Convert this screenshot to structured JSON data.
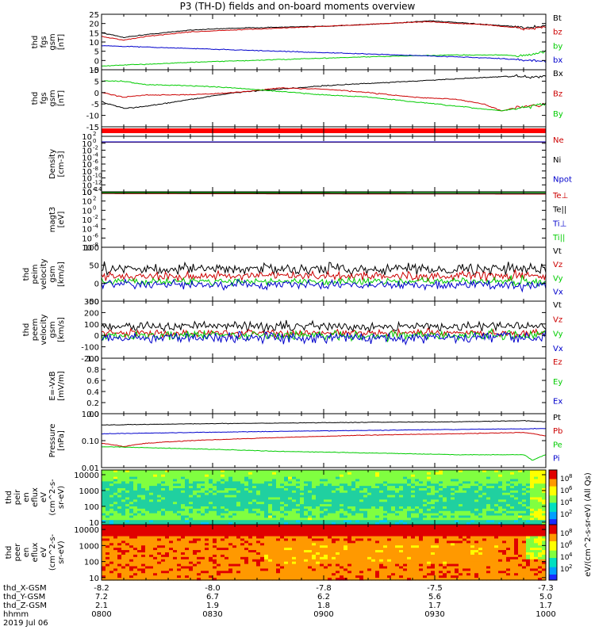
{
  "title": "P3 (TH-D) fields and on-board moments overview",
  "chart_data": [
    {
      "type": "line",
      "panel": "fgs",
      "ylabel": [
        "thd",
        "fgs",
        "gsm",
        "[nT]"
      ],
      "ylim": [
        -5,
        25
      ],
      "yticks": [
        -5,
        0,
        5,
        10,
        15,
        20,
        25
      ],
      "series": [
        {
          "name": "Bt",
          "color": "#000000",
          "x": [
            0,
            0.05,
            0.1,
            0.2,
            0.3,
            0.4,
            0.5,
            0.6,
            0.68,
            0.74,
            0.8,
            0.86,
            0.92,
            0.96,
            1.0
          ],
          "values": [
            15,
            12.5,
            14,
            16.5,
            17.5,
            18,
            18.5,
            19.5,
            20.5,
            21.5,
            20.5,
            19.5,
            18.5,
            17.5,
            19
          ]
        },
        {
          "name": "bz",
          "color": "#cc0000",
          "x": [
            0,
            0.05,
            0.1,
            0.2,
            0.3,
            0.4,
            0.5,
            0.6,
            0.68,
            0.74,
            0.8,
            0.86,
            0.92,
            0.96,
            1.0
          ],
          "values": [
            13,
            11,
            13,
            15.5,
            16.5,
            17.5,
            18.5,
            19.5,
            20.5,
            21,
            20,
            19.5,
            18,
            17,
            18
          ]
        },
        {
          "name": "by",
          "color": "#00cc00",
          "x": [
            0,
            0.2,
            0.4,
            0.6,
            0.8,
            0.9,
            0.95,
            1.0
          ],
          "values": [
            -3,
            -1,
            0.5,
            2,
            3,
            3,
            2.5,
            5
          ]
        },
        {
          "name": "bx",
          "color": "#0000cc",
          "x": [
            0,
            0.2,
            0.4,
            0.6,
            0.8,
            0.9,
            1.0
          ],
          "values": [
            8,
            6.5,
            5,
            3.5,
            2,
            1,
            -0.5
          ]
        }
      ]
    },
    {
      "type": "line",
      "panel": "fgs-dsl",
      "ylabel": [
        "thd",
        "fgs",
        "gsm",
        "[nT]"
      ],
      "ylim": [
        -15,
        10
      ],
      "yticks": [
        -15,
        -10,
        -5,
        0,
        5,
        10
      ],
      "series": [
        {
          "name": "Bx",
          "color": "#000000",
          "x": [
            0,
            0.05,
            0.1,
            0.2,
            0.3,
            0.4,
            0.5,
            0.6,
            0.7,
            0.8,
            0.9,
            1.0
          ],
          "values": [
            -4,
            -7,
            -6,
            -3,
            0,
            1.5,
            3,
            4,
            5,
            6,
            7,
            7
          ]
        },
        {
          "name": "Bz",
          "color": "#cc0000",
          "x": [
            0,
            0.05,
            0.1,
            0.2,
            0.3,
            0.4,
            0.5,
            0.6,
            0.7,
            0.8,
            0.86,
            0.9,
            0.95,
            1.0
          ],
          "values": [
            0,
            -2,
            -1,
            -1,
            0,
            2,
            1.5,
            0,
            -2,
            -3,
            -5,
            -8,
            -6,
            -5
          ]
        },
        {
          "name": "By",
          "color": "#00cc00",
          "x": [
            0,
            0.05,
            0.1,
            0.2,
            0.3,
            0.4,
            0.5,
            0.6,
            0.7,
            0.8,
            0.9,
            1.0
          ],
          "values": [
            5,
            5,
            3.5,
            3,
            2,
            0.5,
            -1,
            -2,
            -4,
            -6,
            -8,
            -5
          ]
        }
      ]
    },
    {
      "type": "line",
      "panel": "flags",
      "series": [
        {
          "name": "",
          "color": "#ff0000"
        }
      ]
    },
    {
      "type": "line",
      "panel": "density",
      "scale": "log",
      "ylabel": [
        "Density",
        "[cm-3]"
      ],
      "ylim": [
        -14,
        2
      ],
      "yticks": [
        2,
        0,
        -2,
        -4,
        -6,
        -8,
        -10,
        -12,
        -14
      ],
      "ytick_labels": [
        "10",
        "10",
        "10",
        "10",
        "10",
        "10",
        "10",
        "10",
        "10"
      ],
      "ytick_exps": [
        "2",
        "0",
        "-2",
        "-4",
        "-6",
        "-8",
        "-10",
        "-12",
        "-14"
      ],
      "series": [
        {
          "name": "Ne",
          "color": "#cc0000",
          "values": [
            0.3,
            0.3
          ]
        },
        {
          "name": "Ni",
          "color": "#000000",
          "values": [
            0.35,
            0.35
          ]
        },
        {
          "name": "Npot",
          "color": "#0000cc",
          "values": [
            0.4,
            0.4
          ]
        }
      ]
    },
    {
      "type": "line",
      "panel": "temperature",
      "scale": "log",
      "ylabel": [
        "magt3",
        "[eV]"
      ],
      "ylim": [
        -8,
        4
      ],
      "yticks": [
        4,
        2,
        0,
        -2,
        -4,
        -6,
        -8
      ],
      "ytick_labels": [
        "10",
        "10",
        "10",
        "10",
        "10",
        "10",
        "10"
      ],
      "ytick_exps": [
        "4",
        "2",
        "0",
        "-2",
        "-4",
        "-6",
        "-8"
      ],
      "series": [
        {
          "name": "Te⊥",
          "color": "#cc0000",
          "values": [
            3.6,
            3.5
          ]
        },
        {
          "name": "Te||",
          "color": "#000000",
          "values": [
            3.7,
            3.6
          ]
        },
        {
          "name": "Ti⊥",
          "color": "#0000cc",
          "values": [
            3.9,
            3.9
          ]
        },
        {
          "name": "Ti||",
          "color": "#00cc00",
          "values": [
            3.85,
            3.85
          ]
        }
      ]
    },
    {
      "type": "line",
      "panel": "peim-velocity",
      "ylabel": [
        "thd",
        "peim",
        "velocity",
        "gsm",
        "[km/s]"
      ],
      "ylim": [
        -50,
        100
      ],
      "yticks": [
        -50,
        0,
        50,
        100
      ],
      "series": [
        {
          "name": "Vt",
          "color": "#000000",
          "values": [
            40
          ]
        },
        {
          "name": "Vz",
          "color": "#cc0000",
          "values": [
            20
          ]
        },
        {
          "name": "Vy",
          "color": "#00cc00",
          "values": [
            5
          ]
        },
        {
          "name": "Vx",
          "color": "#0000cc",
          "values": [
            -5
          ]
        }
      ]
    },
    {
      "type": "line",
      "panel": "peem-velocity",
      "ylabel": [
        "thd",
        "peem",
        "velocity",
        "gsm",
        "[km/s]"
      ],
      "ylim": [
        -200,
        300
      ],
      "yticks": [
        -200,
        -100,
        0,
        100,
        200,
        300
      ],
      "series": [
        {
          "name": "Vt",
          "color": "#000000",
          "values": [
            80
          ]
        },
        {
          "name": "Vz",
          "color": "#cc0000",
          "values": [
            20
          ]
        },
        {
          "name": "Vy",
          "color": "#00cc00",
          "values": [
            0
          ]
        },
        {
          "name": "Vx",
          "color": "#0000cc",
          "values": [
            -20
          ]
        }
      ]
    },
    {
      "type": "line",
      "panel": "efield",
      "ylabel": [
        "E=-VxB",
        "[mV/m]"
      ],
      "ylim": [
        0,
        1
      ],
      "yticks": [
        0,
        0.2,
        0.4,
        0.6,
        0.8,
        1.0
      ],
      "ytick_labels": [
        "0.0",
        "0.2",
        "0.4",
        "0.6",
        "0.8",
        "1.0"
      ],
      "series": [
        {
          "name": "Ez",
          "color": "#cc0000",
          "values": []
        },
        {
          "name": "Ey",
          "color": "#00cc00",
          "values": []
        },
        {
          "name": "Ex",
          "color": "#0000cc",
          "values": []
        }
      ]
    },
    {
      "type": "line",
      "panel": "pressure",
      "scale": "log",
      "ylabel": [
        "Pressure",
        "[nPa]"
      ],
      "ylim": [
        0.01,
        1.0
      ],
      "yticks": [
        1.0,
        0.1,
        0.01
      ],
      "ytick_labels": [
        "1.00",
        "0.10",
        "0.01"
      ],
      "series": [
        {
          "name": "Pt",
          "color": "#000000",
          "x": [
            0,
            0.2,
            0.4,
            0.6,
            0.8,
            0.95,
            1.0
          ],
          "values": [
            0.38,
            0.42,
            0.45,
            0.48,
            0.5,
            0.55,
            0.5
          ]
        },
        {
          "name": "Pb",
          "color": "#cc0000",
          "x": [
            0,
            0.05,
            0.1,
            0.2,
            0.4,
            0.6,
            0.8,
            0.95,
            1.0
          ],
          "values": [
            0.08,
            0.06,
            0.08,
            0.1,
            0.13,
            0.16,
            0.18,
            0.2,
            0.15
          ]
        },
        {
          "name": "Pe",
          "color": "#00cc00",
          "x": [
            0,
            0.2,
            0.4,
            0.6,
            0.8,
            0.95,
            0.97,
            1.0
          ],
          "values": [
            0.06,
            0.05,
            0.04,
            0.035,
            0.03,
            0.03,
            0.018,
            0.03
          ]
        },
        {
          "name": "Pi",
          "color": "#0000cc",
          "x": [
            0,
            0.2,
            0.4,
            0.6,
            0.8,
            1.0
          ],
          "values": [
            0.18,
            0.2,
            0.22,
            0.24,
            0.26,
            0.28
          ]
        }
      ]
    },
    {
      "type": "heatmap",
      "panel": "peir",
      "ylabel": [
        "thd",
        "peir",
        "en",
        "eflux",
        "eV",
        "(cm^2-s-",
        "sr-eV)"
      ],
      "scale": "log",
      "ylim": [
        7,
        20000
      ],
      "yticks": [
        10,
        100,
        1000,
        10000
      ],
      "ytick_labels": [
        "10",
        "100",
        "1000",
        "10000"
      ],
      "colorbar": {
        "label": "[eV/(cm^2-s-sr-eV)]",
        "tick_exps": [
          "8",
          "6",
          "4",
          "2"
        ]
      }
    },
    {
      "type": "heatmap",
      "panel": "peer",
      "ylabel": [
        "thd",
        "peer",
        "en",
        "eflux",
        "eV",
        "(cm^2-s-",
        "sr-eV)"
      ],
      "scale": "log",
      "ylim": [
        7,
        20000
      ],
      "yticks": [
        10,
        100,
        1000,
        10000
      ],
      "ytick_labels": [
        "10",
        "100",
        "1000",
        "10000"
      ],
      "colorbar": {
        "label": "[eV/(cm^2-s-sr-eV)]",
        "tick_exps": [
          "8",
          "6",
          "4",
          "2"
        ]
      }
    }
  ],
  "colorbar_axis_label": "eV/(cm^2-s-sr-eV) (All Qs)",
  "xaxis": {
    "rows": [
      {
        "label": "thd_X-GSM",
        "values": [
          "-8.2",
          "-8.0",
          "-7.8",
          "-7.5",
          "-7.3"
        ]
      },
      {
        "label": "thd_Y-GSM",
        "values": [
          "7.2",
          "6.7",
          "6.2",
          "5.6",
          "5.0"
        ]
      },
      {
        "label": "thd_Z-GSM",
        "values": [
          "2.1",
          "1.9",
          "1.8",
          "1.7",
          "1.7"
        ]
      },
      {
        "label": "hhmm",
        "values": [
          "0800",
          "0830",
          "0900",
          "0930",
          "1000"
        ]
      }
    ],
    "date": "2019 Jul 06"
  }
}
